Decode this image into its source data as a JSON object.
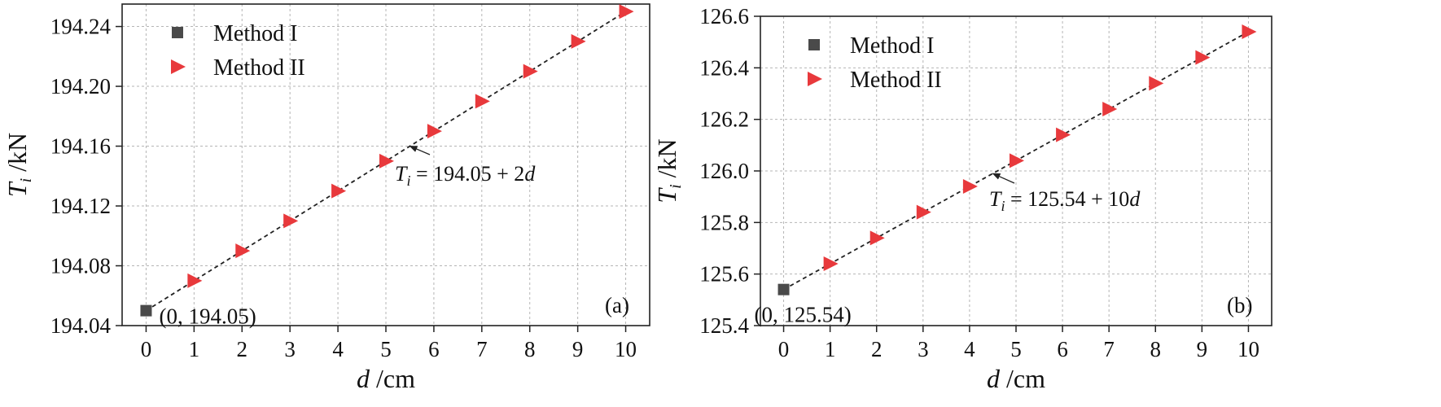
{
  "chart_data": [
    {
      "type": "scatter",
      "panel_label": "(a)",
      "xlabel": "d",
      "xunit": "/cm",
      "ylabel": "T",
      "ylabel_sub": "i",
      "yunit": "/kN",
      "xlim": [
        -0.5,
        10.5
      ],
      "ylim": [
        194.04,
        194.255
      ],
      "xticks": [
        0,
        1,
        2,
        3,
        4,
        5,
        6,
        7,
        8,
        9,
        10
      ],
      "xtick_labels": [
        "0",
        "1",
        "2",
        "3",
        "4",
        "5",
        "6",
        "7",
        "8",
        "9",
        "10"
      ],
      "yticks": [
        194.04,
        194.08,
        194.12,
        194.16,
        194.2,
        194.24
      ],
      "ytick_labels": [
        "194.04",
        "194.08",
        "194.12",
        "194.16",
        "194.20",
        "194.24"
      ],
      "grid": true,
      "legend_position": "top-left",
      "series": [
        {
          "name": "Method I",
          "marker": "square",
          "color": "#4a4a4a",
          "x": [
            0
          ],
          "y": [
            194.05
          ]
        },
        {
          "name": "Method II",
          "marker": "triangle-right",
          "color": "#e8393c",
          "x": [
            1,
            2,
            3,
            4,
            5,
            6,
            7,
            8,
            9,
            10
          ],
          "y": [
            194.07,
            194.09,
            194.11,
            194.13,
            194.15,
            194.17,
            194.19,
            194.21,
            194.23,
            194.25
          ]
        }
      ],
      "fit_line": {
        "intercept": 194.05,
        "slope": 0.02,
        "x_range": [
          0,
          10
        ],
        "color": "#222222",
        "style": "dashed"
      },
      "point_annotation": {
        "text": "(0, 194.05)",
        "x": 0,
        "y": 194.05
      },
      "equation": {
        "lhs": "T",
        "lhs_sub": "i",
        "rhs": " = 194.05 + 2",
        "var": "d",
        "arrow_to": {
          "x": 5.5,
          "y": 194.16
        }
      }
    },
    {
      "type": "scatter",
      "panel_label": "(b)",
      "xlabel": "d",
      "xunit": "/cm",
      "ylabel": "T",
      "ylabel_sub": "i",
      "yunit": "/kN",
      "xlim": [
        -0.5,
        10.5
      ],
      "ylim": [
        125.4,
        126.6
      ],
      "xticks": [
        0,
        1,
        2,
        3,
        4,
        5,
        6,
        7,
        8,
        9,
        10
      ],
      "xtick_labels": [
        "0",
        "1",
        "2",
        "3",
        "4",
        "5",
        "6",
        "7",
        "8",
        "9",
        "10"
      ],
      "yticks": [
        125.4,
        125.6,
        125.8,
        126.0,
        126.2,
        126.4,
        126.6
      ],
      "ytick_labels": [
        "125.4",
        "125.6",
        "125.8",
        "126.0",
        "126.2",
        "126.4",
        "126.6"
      ],
      "grid": true,
      "legend_position": "top-left",
      "series": [
        {
          "name": "Method I",
          "marker": "square",
          "color": "#4a4a4a",
          "x": [
            0
          ],
          "y": [
            125.54
          ]
        },
        {
          "name": "Method II",
          "marker": "triangle-right",
          "color": "#e8393c",
          "x": [
            1,
            2,
            3,
            4,
            5,
            6,
            7,
            8,
            9,
            10
          ],
          "y": [
            125.64,
            125.74,
            125.84,
            125.94,
            126.04,
            126.14,
            126.24,
            126.34,
            126.44,
            126.54
          ]
        }
      ],
      "fit_line": {
        "intercept": 125.54,
        "slope": 0.1,
        "x_range": [
          0,
          10
        ],
        "color": "#222222",
        "style": "dashed"
      },
      "point_annotation": {
        "text": "(0, 125.54)",
        "x": 0,
        "y": 125.54
      },
      "equation": {
        "lhs": "T",
        "lhs_sub": "i",
        "rhs": " = 125.54 + 10",
        "var": "d",
        "arrow_to": {
          "x": 4.5,
          "y": 125.99
        }
      }
    }
  ]
}
